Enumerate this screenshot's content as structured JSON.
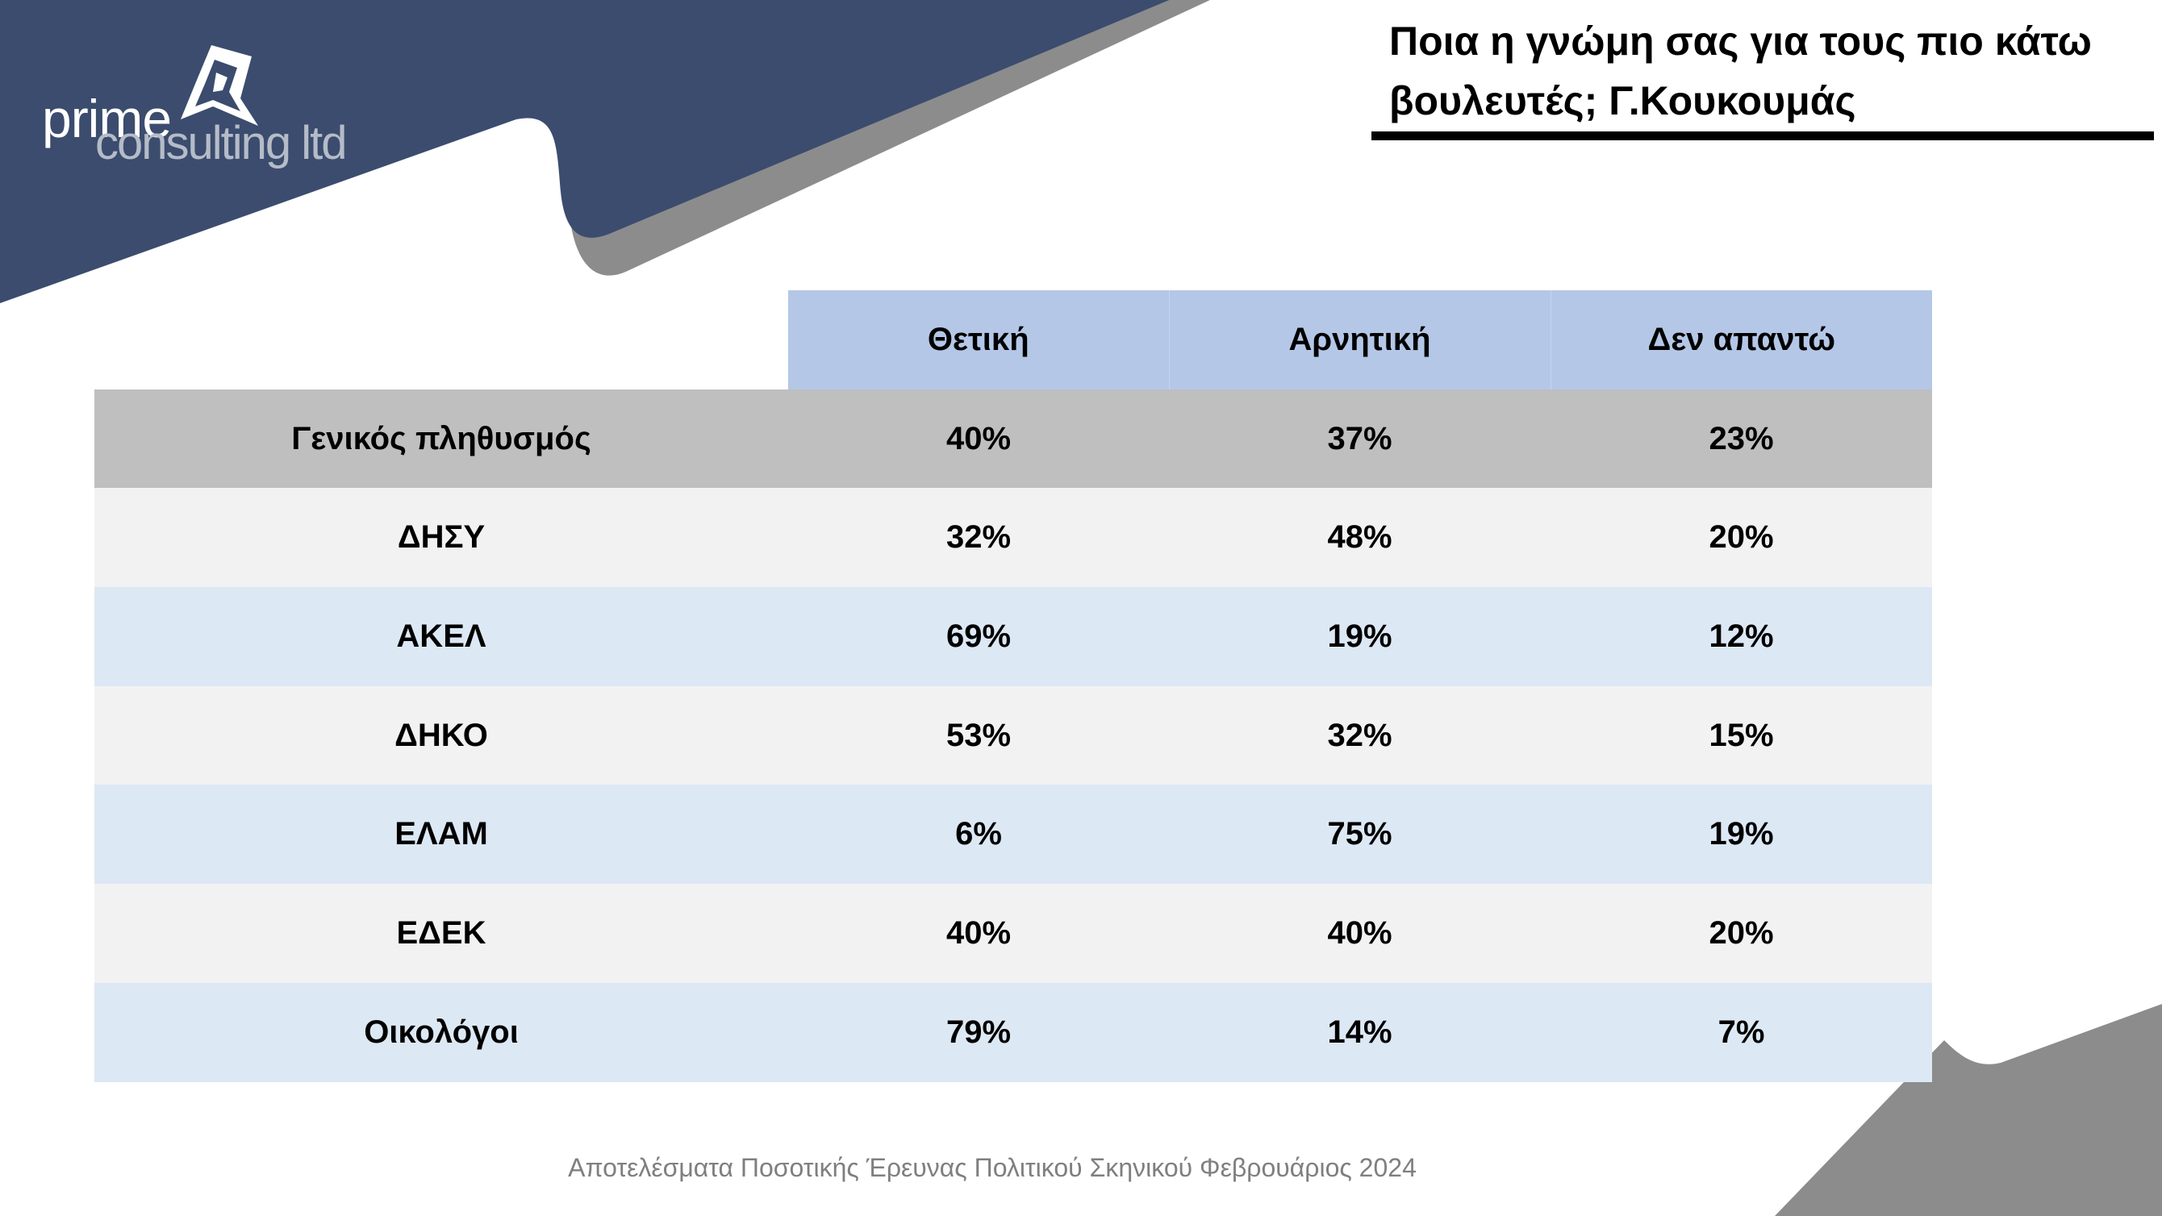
{
  "brand": {
    "logo_line1": "prime",
    "logo_line2": "consulting ltd",
    "colors": {
      "navy": "#3b4c6e",
      "grey": "#8c8c8c",
      "header_blue": "#b4c7e7",
      "row_grey": "#bfbfbf",
      "row_light": "#f2f2f2",
      "row_blue": "#dde8f5"
    }
  },
  "title": "Ποια η γνώμη σας για τους πιο κάτω βουλευτές; Γ.Κουκουμάς",
  "footer": "Αποτελέσματα Ποσοτικής Έρευνας Πολιτικού Σκηνικού Φεβρουάριος 2024",
  "chart_data": {
    "type": "table",
    "columns": [
      "Θετική",
      "Αρνητική",
      "Δεν απαντώ"
    ],
    "rows": [
      {
        "label": "Γενικός πληθυσμός",
        "values": [
          "40%",
          "37%",
          "23%"
        ]
      },
      {
        "label": "ΔΗΣΥ",
        "values": [
          "32%",
          "48%",
          "20%"
        ]
      },
      {
        "label": "ΑΚΕΛ",
        "values": [
          "69%",
          "19%",
          "12%"
        ]
      },
      {
        "label": "ΔΗΚΟ",
        "values": [
          "53%",
          "32%",
          "15%"
        ]
      },
      {
        "label": "ΕΛΑΜ",
        "values": [
          "6%",
          "75%",
          "19%"
        ]
      },
      {
        "label": "ΕΔΕΚ",
        "values": [
          "40%",
          "40%",
          "20%"
        ]
      },
      {
        "label": "Οικολόγοι",
        "values": [
          "79%",
          "14%",
          "7%"
        ]
      }
    ]
  }
}
